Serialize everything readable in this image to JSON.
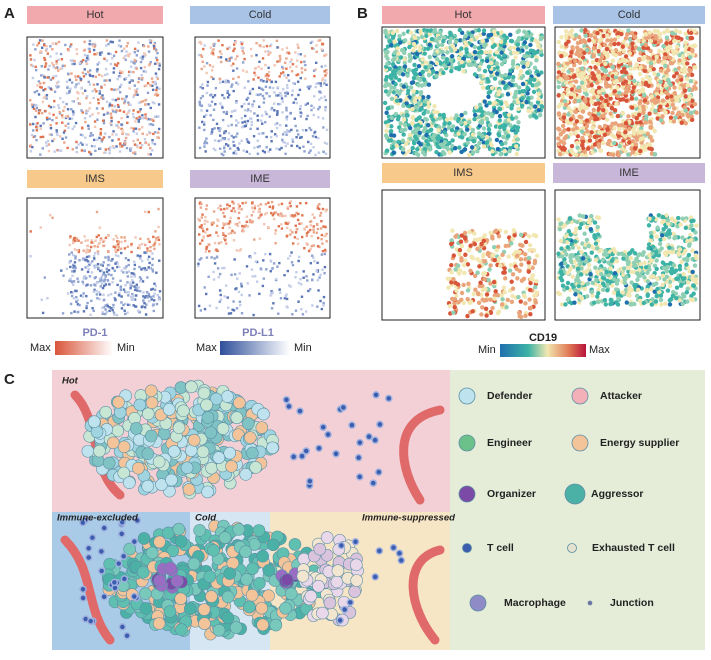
{
  "panel_a": {
    "label": "A",
    "panels": [
      {
        "title": "Hot"
      },
      {
        "title": "Cold"
      },
      {
        "title": "IMS"
      },
      {
        "title": "IME"
      }
    ],
    "colorbars": [
      {
        "title": "PD-1",
        "left": "Max",
        "right": "Min"
      },
      {
        "title": "PD-L1",
        "left": "Max",
        "right": "Min"
      }
    ]
  },
  "panel_b": {
    "label": "B",
    "panels": [
      {
        "title": "Hot"
      },
      {
        "title": "Cold"
      },
      {
        "title": "IMS"
      },
      {
        "title": "IME"
      }
    ],
    "colorbar": {
      "title": "CD19",
      "left": "Min",
      "right": "Max"
    }
  },
  "panel_c": {
    "label": "C",
    "regions": [
      "Hot",
      "Immune-excluded",
      "Cold",
      "Immune-suppressed"
    ],
    "legend": [
      "Defender",
      "Attacker",
      "Engineer",
      "Energy supplier",
      "Organizer",
      "Aggressor",
      "T cell",
      "Exhausted T cell",
      "Macrophage",
      "Junction"
    ]
  }
}
